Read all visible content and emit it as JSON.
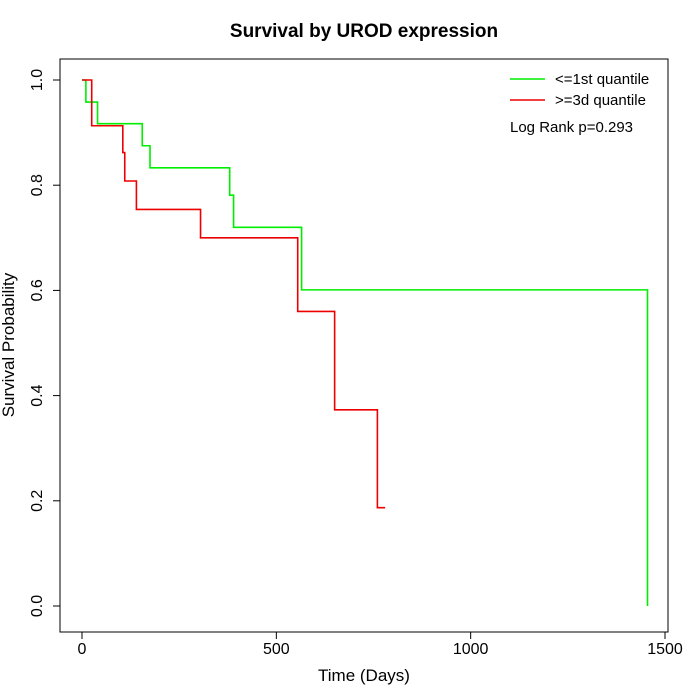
{
  "chart_data": {
    "type": "line",
    "step": true,
    "title": "Survival by UROD expression",
    "xlabel": "Time (Days)",
    "ylabel": "Survival Probability",
    "xlim": [
      0,
      1500
    ],
    "ylim": [
      0,
      1
    ],
    "xticks": [
      0,
      500,
      1000,
      1500
    ],
    "yticks": [
      0.0,
      0.2,
      0.4,
      0.6,
      0.8,
      1.0
    ],
    "xtick_labels": [
      "0",
      "500",
      "1000",
      "1500"
    ],
    "ytick_labels": [
      "0.0",
      "0.2",
      "0.4",
      "0.6",
      "0.8",
      "1.0"
    ],
    "grid": false,
    "legend_position": "top-right",
    "annotation": "Log Rank p=0.293",
    "series": [
      {
        "name": "<=1st quantile",
        "color": "#00ee00",
        "x": [
          0,
          10,
          40,
          155,
          175,
          380,
          390,
          565,
          1455
        ],
        "y": [
          1.0,
          0.958,
          0.917,
          0.875,
          0.833,
          0.781,
          0.72,
          0.601,
          0.0
        ]
      },
      {
        "name": ">=3d quantile",
        "color": "#ee0000",
        "x": [
          0,
          25,
          105,
          110,
          140,
          305,
          555,
          650,
          760,
          780
        ],
        "y": [
          1.0,
          0.913,
          0.862,
          0.808,
          0.754,
          0.7,
          0.56,
          0.373,
          0.187,
          0.187
        ]
      }
    ]
  }
}
